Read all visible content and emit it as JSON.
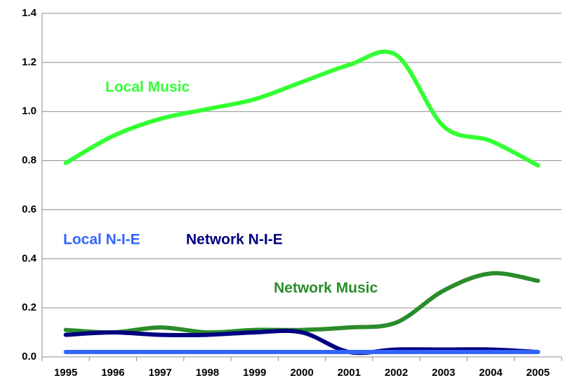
{
  "chart_data": {
    "type": "line",
    "categories": [
      "1995",
      "1996",
      "1997",
      "1998",
      "1999",
      "2000",
      "2001",
      "2002",
      "2003",
      "2004",
      "2005"
    ],
    "series": [
      {
        "name": "Local Music",
        "color": "#33ff33",
        "values": [
          0.79,
          0.9,
          0.97,
          1.01,
          1.05,
          1.12,
          1.19,
          1.23,
          0.94,
          0.88,
          0.78
        ]
      },
      {
        "name": "Network Music",
        "color": "#2a8c2a",
        "values": [
          0.11,
          0.1,
          0.12,
          0.1,
          0.11,
          0.11,
          0.12,
          0.14,
          0.27,
          0.34,
          0.31
        ]
      },
      {
        "name": "Local N-I-E",
        "color": "#3366ff",
        "values": [
          0.02,
          0.02,
          0.02,
          0.02,
          0.02,
          0.02,
          0.02,
          0.02,
          0.02,
          0.02,
          0.02
        ]
      },
      {
        "name": "Network N-I-E",
        "color": "#000080",
        "values": [
          0.09,
          0.1,
          0.09,
          0.09,
          0.1,
          0.1,
          0.02,
          0.03,
          0.03,
          0.03,
          0.02
        ]
      }
    ],
    "ylim": [
      0,
      1.4
    ],
    "yticks": [
      {
        "value": 0,
        "label": "0.0"
      },
      0.2,
      0.4,
      0.6,
      0.8,
      {
        "value": 1,
        "label": "1.0"
      },
      1.2,
      1.4
    ],
    "grid": true
  }
}
